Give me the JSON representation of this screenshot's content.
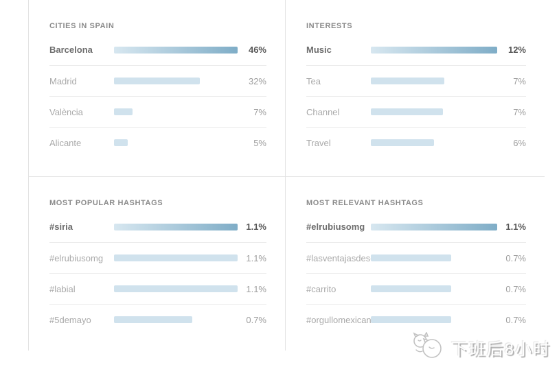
{
  "colors": {
    "border": "#e3e3e3",
    "separator": "#ececec",
    "title": "#8a8a8a",
    "label": "#a9a9a9",
    "label_highlight": "#6d6d6d",
    "value": "#9d9d9d",
    "value_highlight": "#575757",
    "bar_light": "#d0e2ed",
    "bar_gradient_start": "#d7e7f0",
    "bar_gradient_end": "#7fadc7"
  },
  "chart_data": [
    {
      "type": "bar",
      "title": "CITIES IN SPAIN",
      "categories": [
        "Barcelona",
        "Madrid",
        "València",
        "Alicante"
      ],
      "values": [
        46,
        32,
        7,
        5
      ],
      "unit": "%"
    },
    {
      "type": "bar",
      "title": "INTERESTS",
      "categories": [
        "Music",
        "Tea",
        "Channel",
        "Travel"
      ],
      "values": [
        12,
        7,
        7,
        6
      ],
      "unit": "%"
    },
    {
      "type": "bar",
      "title": "MOST POPULAR HASHTAGS",
      "categories": [
        "#siria",
        "#elrubiusomg",
        "#labial",
        "#5demayo"
      ],
      "values": [
        1.1,
        1.1,
        1.1,
        0.7
      ],
      "unit": "%"
    },
    {
      "type": "bar",
      "title": "MOST RELEVANT HASHTAGS",
      "categories": [
        "#elrubiusomg",
        "#lasventajasdeser",
        "#carrito",
        "#orgullomexicano"
      ],
      "values": [
        1.1,
        0.7,
        0.7,
        0.7
      ],
      "unit": "%"
    }
  ],
  "panels": [
    {
      "title": "CITIES IN SPAIN",
      "rows": [
        {
          "label": "Barcelona",
          "value": "46%",
          "bar_pct": 100
        },
        {
          "label": "Madrid",
          "value": "32%",
          "bar_pct": 69.6
        },
        {
          "label": "València",
          "value": "7%",
          "bar_pct": 15.2
        },
        {
          "label": "Alicante",
          "value": "5%",
          "bar_pct": 10.9
        }
      ]
    },
    {
      "title": "INTERESTS",
      "rows": [
        {
          "label": "Music",
          "value": "12%",
          "bar_pct": 100
        },
        {
          "label": "Tea",
          "value": "7%",
          "bar_pct": 58.3
        },
        {
          "label": "Channel",
          "value": "7%",
          "bar_pct": 57.0
        },
        {
          "label": "Travel",
          "value": "6%",
          "bar_pct": 50.0
        }
      ]
    },
    {
      "title": "MOST POPULAR HASHTAGS",
      "rows": [
        {
          "label": "#siria",
          "value": "1.1%",
          "bar_pct": 100
        },
        {
          "label": "#elrubiusomg",
          "value": "1.1%",
          "bar_pct": 100
        },
        {
          "label": "#labial",
          "value": "1.1%",
          "bar_pct": 100
        },
        {
          "label": "#5demayo",
          "value": "0.7%",
          "bar_pct": 63.6
        }
      ]
    },
    {
      "title": "MOST RELEVANT HASHTAGS",
      "rows": [
        {
          "label": "#elrubiusomg",
          "value": "1.1%",
          "bar_pct": 100
        },
        {
          "label": "#lasventajasdeser",
          "value": "0.7%",
          "bar_pct": 63.6
        },
        {
          "label": "#carrito",
          "value": "0.7%",
          "bar_pct": 63.6
        },
        {
          "label": "#orgullomexicano",
          "value": "0.7%",
          "bar_pct": 63.6
        }
      ]
    }
  ],
  "watermark": {
    "text": "下班后8小时"
  }
}
